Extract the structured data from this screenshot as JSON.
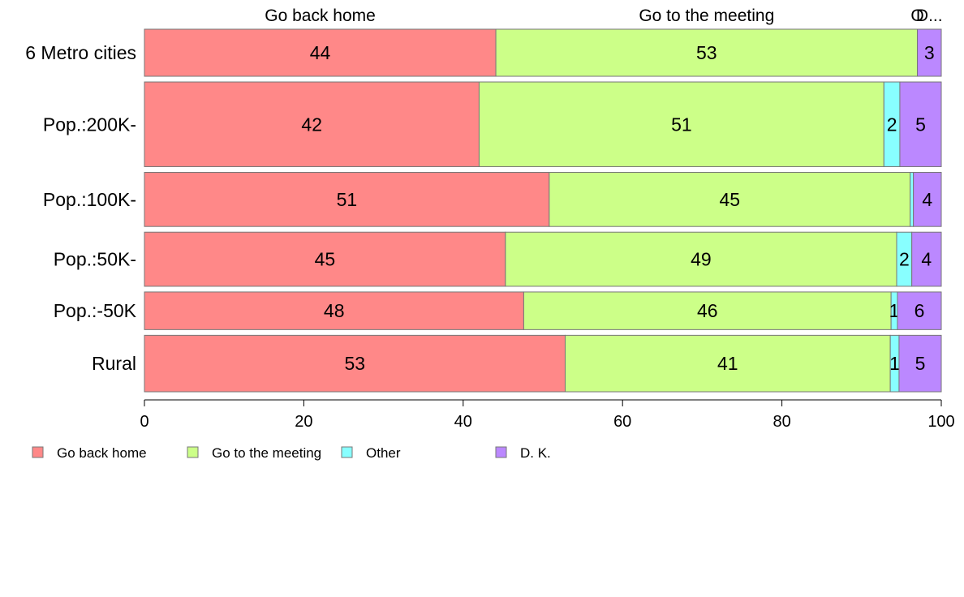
{
  "chart_data": {
    "type": "bar",
    "orientation": "horizontal",
    "stacked": true,
    "categories": [
      "6 Metro cities",
      "Pop.:200K-",
      "Pop.:100K-",
      "Pop.:50K-",
      "Pop.:-50K",
      "Rural"
    ],
    "series": [
      {
        "name": "Go back home",
        "color": "#ff8888",
        "values": [
          44.1,
          42.0,
          50.8,
          45.3,
          47.6,
          52.8
        ]
      },
      {
        "name": "Go to the meeting",
        "color": "#ccff88",
        "values": [
          52.9,
          50.8,
          45.3,
          49.1,
          46.1,
          40.8
        ]
      },
      {
        "name": "Other",
        "color": "#88ffff",
        "values": [
          0.0,
          2.0,
          0.4,
          1.9,
          0.8,
          1.1
        ]
      },
      {
        "name": "D. K.",
        "color": "#bb88ff",
        "values": [
          3.0,
          5.2,
          3.5,
          3.7,
          5.5,
          5.3
        ]
      }
    ],
    "data_labels": [
      [
        "44",
        "53",
        "",
        "3"
      ],
      [
        "42",
        "51",
        "2",
        "5"
      ],
      [
        "51",
        "45",
        "",
        "4"
      ],
      [
        "45",
        "49",
        "2",
        "4"
      ],
      [
        "48",
        "46",
        "1",
        "6"
      ],
      [
        "53",
        "41",
        "1",
        "5"
      ]
    ],
    "top_labels": [
      "Go back home",
      "Go to the meeting",
      "O",
      "D..."
    ],
    "row_weights": [
      1.0,
      1.8,
      1.15,
      1.15,
      0.8,
      1.2
    ],
    "xlim": [
      0,
      100
    ],
    "xticks": [
      "0",
      "20",
      "40",
      "60",
      "80",
      "100"
    ],
    "legend": [
      "Go back home",
      "Go to the meeting",
      "Other",
      "D. K."
    ],
    "legend_position": "bottom-left",
    "grid": false
  }
}
